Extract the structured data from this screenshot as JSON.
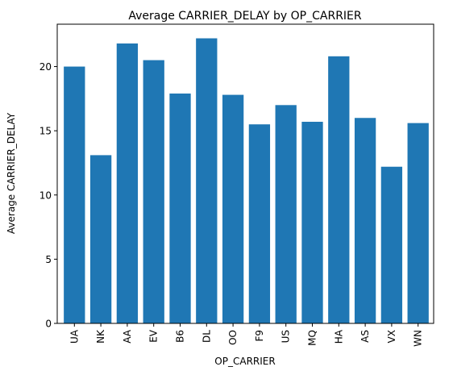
{
  "chart_data": {
    "type": "bar",
    "title": "Average CARRIER_DELAY by OP_CARRIER",
    "xlabel": "OP_CARRIER",
    "ylabel": "Average CARRIER_DELAY",
    "categories": [
      "UA",
      "NK",
      "AA",
      "EV",
      "B6",
      "DL",
      "OO",
      "F9",
      "US",
      "MQ",
      "HA",
      "AS",
      "VX",
      "WN"
    ],
    "values": [
      20.0,
      13.1,
      21.8,
      20.5,
      17.9,
      22.2,
      17.8,
      15.5,
      17.0,
      15.7,
      20.8,
      16.0,
      12.2,
      15.6
    ],
    "ylim": [
      0,
      23.3
    ],
    "yticks": [
      0,
      5,
      10,
      15,
      20
    ],
    "bar_color": "#1f77b4",
    "grid": false,
    "legend": "none"
  }
}
